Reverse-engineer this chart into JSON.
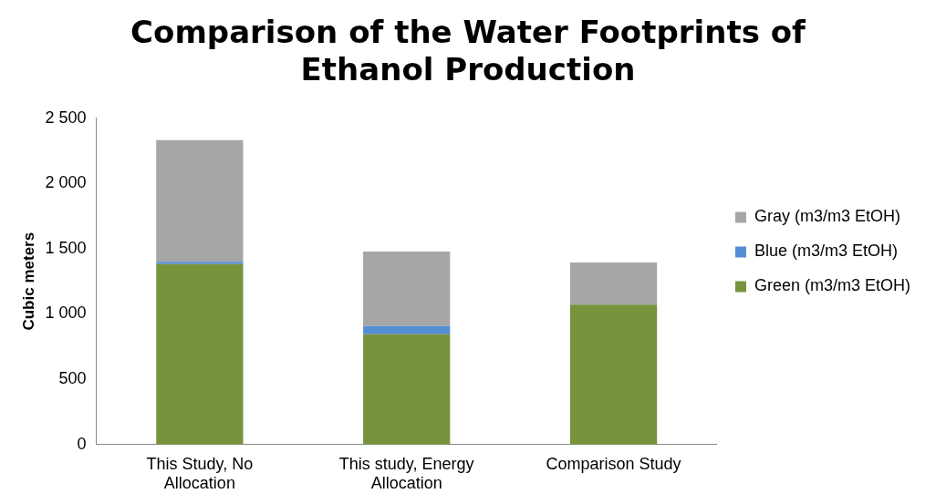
{
  "chart_data": {
    "type": "bar",
    "title": "Comparison of the Water Footprints of Ethanol Production",
    "ylabel": "Cubic meters",
    "categories": [
      "This Study, No Allocation",
      "This study, Energy Allocation",
      "Comparison Study"
    ],
    "stacked": true,
    "series": [
      {
        "name": "Green (m3/m3 EtOH)",
        "color": "#77933c",
        "values": [
          1383,
          845,
          1072
        ]
      },
      {
        "name": "Blue (m3/m3 EtOH)",
        "color": "#558ed5",
        "values": [
          17,
          62,
          0
        ]
      },
      {
        "name": "Gray (m3/m3 EtOH)",
        "color": "#a6a6a6",
        "values": [
          932,
          571,
          322
        ]
      }
    ],
    "ylim": [
      0,
      2500
    ],
    "yticks": [
      0,
      {
        "value": 500,
        "label": "500"
      },
      {
        "value": 1000,
        "label": "1 000"
      },
      {
        "value": 1500,
        "label": "1 500"
      },
      {
        "value": 2000,
        "label": "2 000"
      },
      {
        "value": 2500,
        "label": "2 500"
      }
    ],
    "grid": false,
    "legend": "right"
  }
}
